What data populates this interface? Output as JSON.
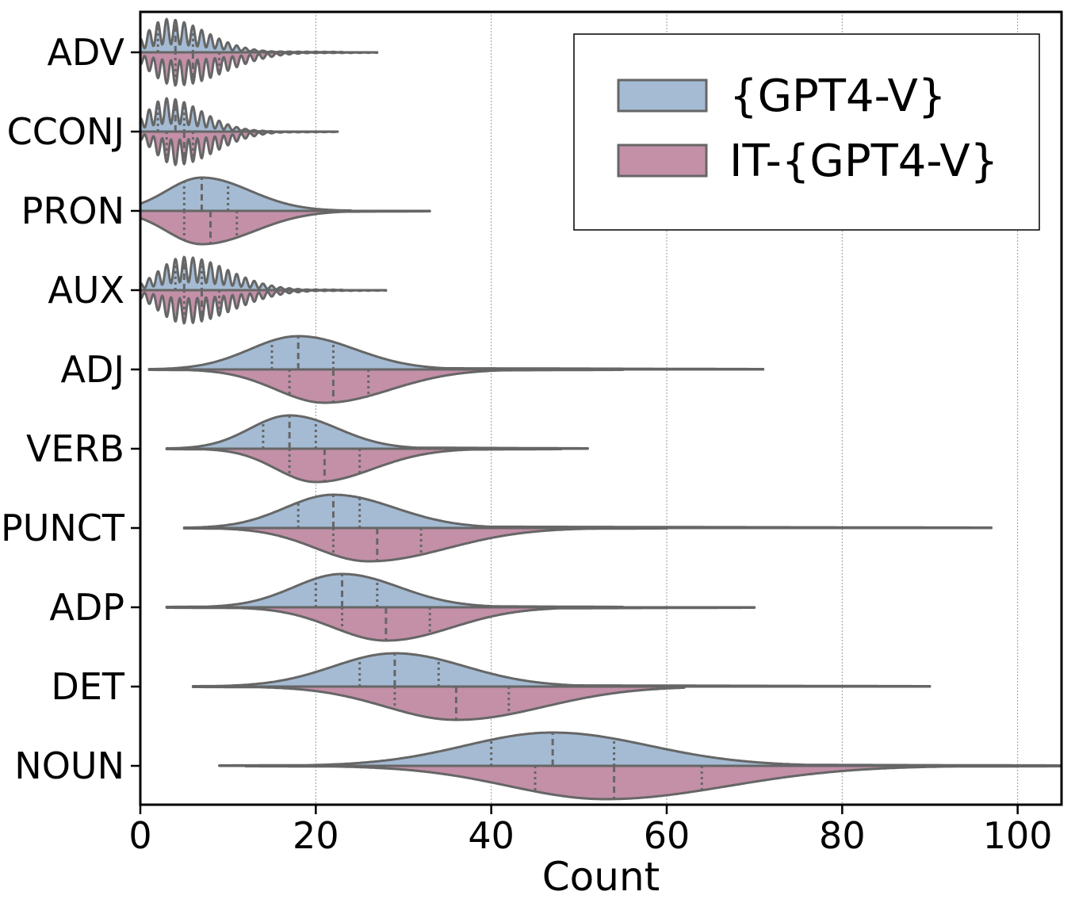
{
  "chart_data": {
    "type": "violin",
    "orientation": "horizontal",
    "split": true,
    "title": "",
    "xlabel": "Count",
    "ylabel": "",
    "xlim": [
      0,
      105
    ],
    "xticks": [
      0,
      20,
      40,
      60,
      80,
      100
    ],
    "grid": "vertical dotted",
    "legend_position": "top-right",
    "colors": {
      "gpt4v": "#a4bbd3",
      "it_gpt4v": "#c390a8",
      "edge": "#666666"
    },
    "series": [
      {
        "key": "gpt4v",
        "name": "{GPT4-V}"
      },
      {
        "key": "it_gpt4v",
        "name": "IT-{GPT4-V}"
      }
    ],
    "categories": [
      "ADV",
      "CCONJ",
      "PRON",
      "AUX",
      "ADJ",
      "VERB",
      "PUNCT",
      "ADP",
      "DET",
      "NOUN"
    ],
    "violins": [
      {
        "category": "ADV",
        "discrete": true,
        "gpt4v": {
          "min": 0,
          "max": 23,
          "mode": 3,
          "spread_left": 2.2,
          "spread_right": 4.5,
          "quartiles": [
            2,
            4,
            6
          ]
        },
        "it_gpt4v": {
          "min": 0,
          "max": 27,
          "mode": 4,
          "spread_left": 2.8,
          "spread_right": 5.5,
          "quartiles": [
            4,
            6,
            9
          ]
        }
      },
      {
        "category": "CCONJ",
        "discrete": true,
        "gpt4v": {
          "min": 0,
          "max": 15,
          "mode": 3,
          "spread_left": 2.2,
          "spread_right": 4.0,
          "quartiles": [
            2,
            4,
            5
          ]
        },
        "it_gpt4v": {
          "min": 0,
          "max": 22.5,
          "mode": 4,
          "spread_left": 2.4,
          "spread_right": 4.5,
          "quartiles": [
            3,
            5,
            6
          ]
        }
      },
      {
        "category": "PRON",
        "discrete": false,
        "gpt4v": {
          "min": 0,
          "max": 24,
          "mode": 7,
          "spread_left": 4.0,
          "spread_right": 5.5,
          "quartiles": [
            5,
            7,
            10
          ]
        },
        "it_gpt4v": {
          "min": 0,
          "max": 33,
          "mode": 7,
          "spread_left": 4.0,
          "spread_right": 6.0,
          "quartiles": [
            5,
            8,
            11
          ]
        }
      },
      {
        "category": "AUX",
        "discrete": true,
        "gpt4v": {
          "min": 0,
          "max": 23,
          "mode": 5,
          "spread_left": 2.8,
          "spread_right": 5.0,
          "quartiles": [
            4,
            5,
            7
          ]
        },
        "it_gpt4v": {
          "min": 0,
          "max": 28,
          "mode": 5,
          "spread_left": 3.0,
          "spread_right": 5.5,
          "quartiles": [
            5,
            7,
            9
          ]
        }
      },
      {
        "category": "ADJ",
        "discrete": false,
        "gpt4v": {
          "min": 1,
          "max": 71,
          "mode": 18,
          "spread_left": 5.5,
          "spread_right": 6.5,
          "quartiles": [
            15,
            18,
            22
          ]
        },
        "it_gpt4v": {
          "min": 1,
          "max": 55,
          "mode": 21,
          "spread_left": 5.5,
          "spread_right": 7.5,
          "quartiles": [
            17,
            22,
            26
          ]
        }
      },
      {
        "category": "VERB",
        "discrete": false,
        "gpt4v": {
          "min": 3,
          "max": 51,
          "mode": 17,
          "spread_left": 4.5,
          "spread_right": 5.5,
          "quartiles": [
            14,
            17,
            20
          ]
        },
        "it_gpt4v": {
          "min": 3,
          "max": 48,
          "mode": 20,
          "spread_left": 4.5,
          "spread_right": 6.5,
          "quartiles": [
            17,
            21,
            25
          ]
        }
      },
      {
        "category": "PUNCT",
        "discrete": false,
        "gpt4v": {
          "min": 5,
          "max": 97,
          "mode": 22,
          "spread_left": 5.5,
          "spread_right": 7.0,
          "quartiles": [
            18,
            22,
            25
          ]
        },
        "it_gpt4v": {
          "min": 5,
          "max": 60,
          "mode": 26,
          "spread_left": 6.0,
          "spread_right": 9.0,
          "quartiles": [
            22,
            27,
            32
          ]
        }
      },
      {
        "category": "ADP",
        "discrete": false,
        "gpt4v": {
          "min": 3,
          "max": 55,
          "mode": 23,
          "spread_left": 5.5,
          "spread_right": 6.5,
          "quartiles": [
            20,
            23,
            27
          ]
        },
        "it_gpt4v": {
          "min": 3,
          "max": 70,
          "mode": 28,
          "spread_left": 6.0,
          "spread_right": 7.5,
          "quartiles": [
            23,
            28,
            33
          ]
        }
      },
      {
        "category": "DET",
        "discrete": false,
        "gpt4v": {
          "min": 6,
          "max": 90,
          "mode": 29,
          "spread_left": 7.0,
          "spread_right": 8.0,
          "quartiles": [
            25,
            29,
            34
          ]
        },
        "it_gpt4v": {
          "min": 6,
          "max": 62,
          "mode": 36,
          "spread_left": 8.0,
          "spread_right": 10.0,
          "quartiles": [
            29,
            36,
            42
          ]
        }
      },
      {
        "category": "NOUN",
        "discrete": false,
        "gpt4v": {
          "min": 9,
          "max": 105,
          "mode": 47,
          "spread_left": 10.0,
          "spread_right": 11.0,
          "quartiles": [
            40,
            47,
            54
          ]
        },
        "it_gpt4v": {
          "min": 12,
          "max": 105,
          "mode": 53,
          "spread_left": 11.0,
          "spread_right": 14.0,
          "quartiles": [
            45,
            54,
            64
          ]
        }
      }
    ]
  }
}
